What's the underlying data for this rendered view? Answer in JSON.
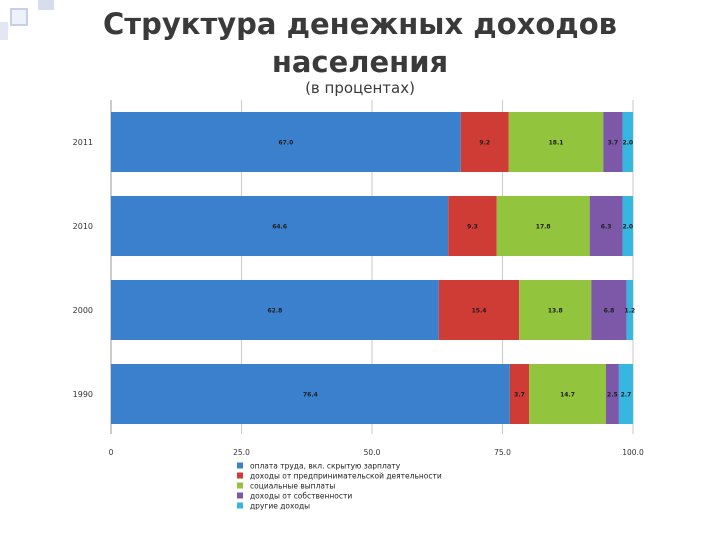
{
  "header": {
    "title_line1": "Структура денежных доходов",
    "title_line2": "населения",
    "subtitle": "(в процентах)"
  },
  "chart_data": {
    "type": "bar",
    "orientation": "horizontal",
    "stacked": true,
    "categories": [
      "2011",
      "2010",
      "2000",
      "1990"
    ],
    "series": [
      {
        "name": "оплата труда, вкл. скрытую зарплату",
        "color": "#3a80cc",
        "values": [
          67.0,
          64.6,
          62.8,
          76.4
        ],
        "labels": [
          "67.0",
          "64.6",
          "62.8",
          "76.4"
        ]
      },
      {
        "name": "доходы от предпринимательской деятельности",
        "color": "#cf3b35",
        "values": [
          9.2,
          9.3,
          15.4,
          3.7
        ],
        "labels": [
          "9.2",
          "9.3",
          "15.4",
          "3.7"
        ]
      },
      {
        "name": "социальные выплаты",
        "color": "#92c43e",
        "values": [
          18.1,
          17.8,
          13.8,
          14.7
        ],
        "labels": [
          "18.1",
          "17.8",
          "13.8",
          "14.7"
        ]
      },
      {
        "name": "доходы от собственности",
        "color": "#7d57a8",
        "values": [
          3.7,
          6.3,
          6.8,
          2.5
        ],
        "labels": [
          "3.7",
          "6.3",
          "6.8",
          "2.5"
        ]
      },
      {
        "name": "другие доходы",
        "color": "#36b7e0",
        "values": [
          2.0,
          2.0,
          1.2,
          2.7
        ],
        "labels": [
          "2.0",
          "2.0",
          "1.2",
          "2.7"
        ]
      }
    ],
    "xlim": [
      0,
      100
    ],
    "xticks": [
      "0",
      "25.0",
      "50.0",
      "75.0",
      "100.0"
    ],
    "grid": true,
    "legend": "bottom"
  }
}
